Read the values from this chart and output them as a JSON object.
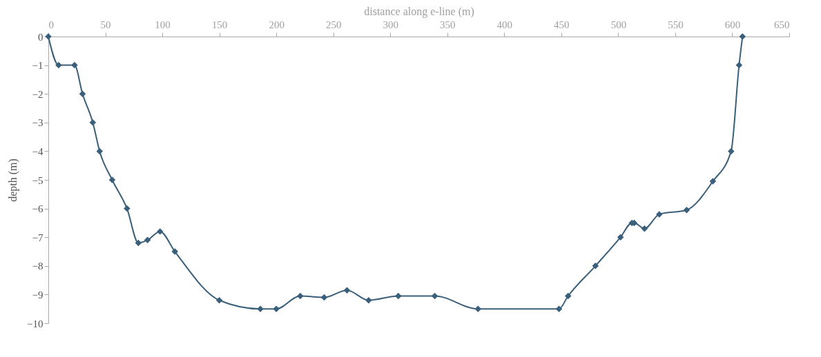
{
  "chart_data": {
    "type": "line",
    "xlabel": "distance along e-line (m)",
    "ylabel": "depth (m)",
    "x": [
      0,
      9,
      23,
      30,
      39,
      45,
      56,
      69,
      79,
      87,
      98,
      111,
      150,
      186,
      200,
      221,
      242,
      262,
      281,
      307,
      339,
      377,
      448,
      456,
      480,
      502,
      512,
      514,
      523,
      536,
      560,
      583,
      599,
      606,
      609
    ],
    "series": [
      {
        "color": "#3a5f7b",
        "values": [
          0,
          -1,
          -1,
          -2,
          -3,
          -4,
          -5,
          -6,
          -7.2,
          -7.1,
          -6.8,
          -7.5,
          -9.2,
          -9.5,
          -9.5,
          -9.05,
          -9.1,
          -8.85,
          -9.2,
          -9.05,
          -9.05,
          -9.5,
          -9.5,
          -9.05,
          -8,
          -7,
          -6.5,
          -6.5,
          -6.7,
          -6.2,
          -6.05,
          -5.05,
          -4,
          -1,
          0
        ]
      }
    ],
    "xlim": [
      0,
      650
    ],
    "xticks": [
      0,
      50,
      100,
      150,
      200,
      250,
      300,
      350,
      400,
      450,
      500,
      550,
      600,
      650
    ],
    "ylim": [
      -10,
      0
    ],
    "yticks": [
      0,
      -1,
      -2,
      -3,
      -4,
      -5,
      -6,
      -7,
      -8,
      -9,
      -10
    ],
    "marker": "diamond",
    "grid": false,
    "legend": false
  }
}
